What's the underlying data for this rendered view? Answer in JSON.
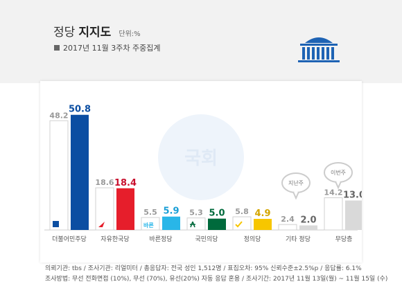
{
  "header": {
    "title_light": "정당",
    "title_bold": "지지도",
    "unit": "단위:%",
    "subtitle": "2017년 11월 3주차 주중집계"
  },
  "chart_data": {
    "type": "bar",
    "categories": [
      "더불어민주당",
      "자유한국당",
      "바른정당",
      "국민의당",
      "정의당",
      "기타 정당",
      "무당층"
    ],
    "series": [
      {
        "values": [
          48.2,
          18.6,
          5.5,
          5.3,
          5.8,
          2.4,
          14.2
        ]
      },
      {
        "values": [
          50.8,
          18.4,
          5.9,
          5.0,
          4.9,
          2.0,
          13.0
        ]
      }
    ],
    "value_labels": [
      [
        "48.2",
        "18.6",
        "5.5",
        "5.3",
        "5.8",
        "2.4",
        "14.2"
      ],
      [
        "50.8",
        "18.4",
        "5.9",
        "5.0",
        "4.9",
        "2.0",
        "13.0"
      ]
    ],
    "colors": [
      "#0b4ea2",
      "#e61e2b",
      "#29b6e8",
      "#006a3c",
      "#f7c600",
      "#d9d9d9",
      "#d9d9d9"
    ],
    "label_colors": [
      "#0b4ea2",
      "#c8102e",
      "#1a9fd6",
      "#006a3c",
      "#d4a600",
      "#666666",
      "#666666"
    ],
    "prev_color": "#ffffff",
    "prev_label_color": "#999999",
    "party_icon_texts": [
      "",
      "",
      "바른",
      "",
      ""
    ],
    "callouts": [
      "지난주",
      "이번주"
    ],
    "watermark": "국회",
    "ylim": [
      0,
      55
    ]
  },
  "footer": {
    "line1": "의뢰기관: tbs / 조사기관: 리얼미터 / 총응답자: 전국 성인 1,512명 / 표집오차: 95% 신뢰수준±2.5%p / 응답률: 6.1%",
    "line2": "조사방법: 무선 전화면접 (10%), 무선 (70%), 유선(20%) 자동 응답 혼용 / 조사기간: 2017년 11월 13일(월) ~ 11월 15일 (수)"
  }
}
